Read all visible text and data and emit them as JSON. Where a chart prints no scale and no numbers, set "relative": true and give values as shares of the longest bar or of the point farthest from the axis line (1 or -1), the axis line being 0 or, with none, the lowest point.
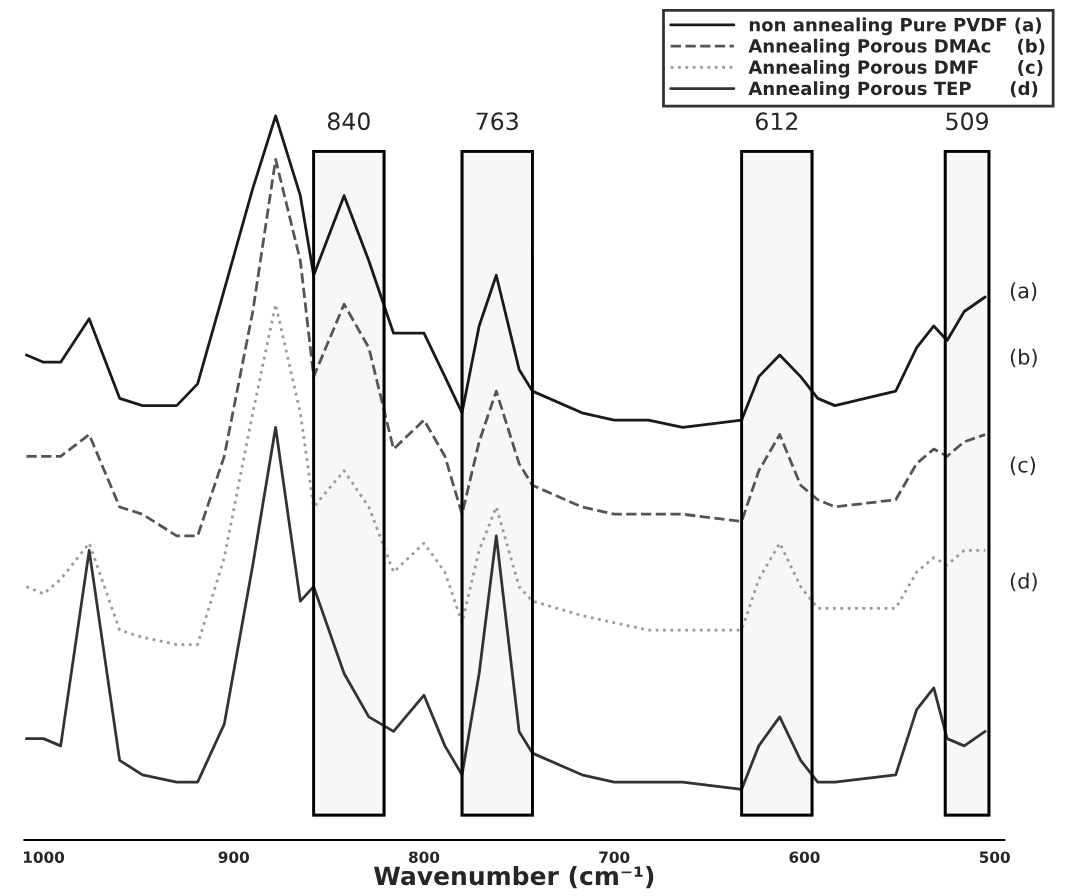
{
  "chart_data": {
    "type": "line",
    "relative": true,
    "xlabel": "Wavenumber (cm⁻¹)",
    "xlim": [
      1010,
      495
    ],
    "xticks": [
      1000,
      900,
      800,
      700,
      600,
      500
    ],
    "x": [
      1009,
      1000,
      991,
      976,
      960,
      948,
      930,
      919,
      905,
      890,
      878,
      865,
      858,
      842,
      829,
      816,
      800,
      789,
      780,
      771,
      762,
      750,
      743,
      717,
      700,
      682,
      664,
      633,
      624,
      613,
      602,
      593,
      584,
      552,
      541,
      532,
      525,
      516,
      505
    ],
    "series": [
      {
        "name": "non annealing Pure PVDF (a)",
        "color": "#1a1a1a",
        "line_style": "solid",
        "values": [
          0.67,
          0.66,
          0.66,
          0.72,
          0.61,
          0.6,
          0.6,
          0.63,
          0.76,
          0.9,
          1.0,
          0.89,
          0.78,
          0.89,
          0.8,
          0.7,
          0.7,
          0.64,
          0.59,
          0.71,
          0.78,
          0.65,
          0.62,
          0.59,
          0.58,
          0.58,
          0.57,
          0.58,
          0.64,
          0.67,
          0.64,
          0.61,
          0.6,
          0.62,
          0.68,
          0.71,
          0.69,
          0.73,
          0.75
        ]
      },
      {
        "name": "Annealing Porous DMAc    (b)",
        "color": "#555555",
        "line_style": "dashed",
        "values": [
          0.53,
          0.53,
          0.53,
          0.56,
          0.46,
          0.45,
          0.42,
          0.42,
          0.53,
          0.73,
          0.94,
          0.8,
          0.64,
          0.74,
          0.68,
          0.54,
          0.58,
          0.53,
          0.45,
          0.55,
          0.62,
          0.52,
          0.49,
          0.46,
          0.45,
          0.45,
          0.45,
          0.44,
          0.51,
          0.56,
          0.49,
          0.47,
          0.46,
          0.47,
          0.52,
          0.54,
          0.53,
          0.55,
          0.56
        ]
      },
      {
        "name": "Annealing Porous DMF      (c)",
        "color": "#9a9a9a",
        "line_style": "dotted",
        "values": [
          0.35,
          0.34,
          0.36,
          0.41,
          0.29,
          0.28,
          0.27,
          0.27,
          0.39,
          0.59,
          0.74,
          0.59,
          0.46,
          0.51,
          0.46,
          0.37,
          0.41,
          0.37,
          0.3,
          0.4,
          0.46,
          0.35,
          0.33,
          0.31,
          0.3,
          0.29,
          0.29,
          0.29,
          0.36,
          0.41,
          0.35,
          0.32,
          0.32,
          0.32,
          0.37,
          0.39,
          0.38,
          0.4,
          0.4
        ]
      },
      {
        "name": "Annealing Porous TEP      (d)",
        "color": "#333333",
        "line_style": "solid",
        "values": [
          0.14,
          0.14,
          0.13,
          0.4,
          0.11,
          0.09,
          0.08,
          0.08,
          0.16,
          0.38,
          0.57,
          0.33,
          0.35,
          0.23,
          0.17,
          0.15,
          0.2,
          0.13,
          0.09,
          0.23,
          0.42,
          0.15,
          0.12,
          0.09,
          0.08,
          0.08,
          0.08,
          0.07,
          0.13,
          0.17,
          0.11,
          0.08,
          0.08,
          0.09,
          0.18,
          0.21,
          0.14,
          0.13,
          0.15
        ]
      }
    ],
    "bands": [
      {
        "axis": "x",
        "from": 858,
        "to": 821,
        "label": "840"
      },
      {
        "axis": "x",
        "from": 780,
        "to": 743,
        "label": "763"
      },
      {
        "axis": "x",
        "from": 633,
        "to": 596,
        "label": "612"
      },
      {
        "axis": "x",
        "from": 526,
        "to": 503,
        "label": "509"
      }
    ],
    "annotations": [
      "(a)",
      "(b)",
      "(c)",
      "(d)"
    ],
    "legend": "top right",
    "grid": false
  }
}
